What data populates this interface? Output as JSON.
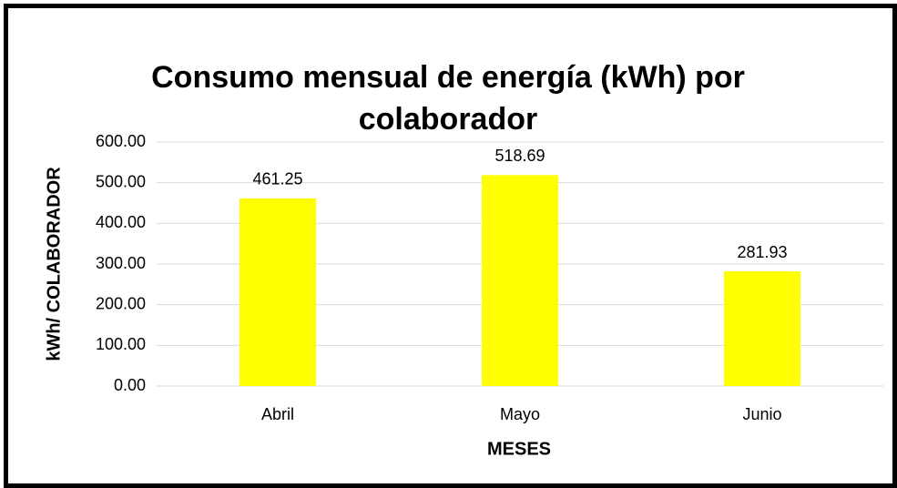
{
  "chart_data": {
    "type": "bar",
    "title": "Consumo mensual de energía (kWh) por colaborador",
    "x_label": "MESES",
    "y_label": "kWh/ COLABORADOR",
    "categories": [
      "Abril",
      "Mayo",
      "Junio"
    ],
    "values": [
      461.25,
      518.69,
      281.93
    ],
    "color": "#ffff00",
    "ylim": [
      0,
      600
    ],
    "yticks": [
      {
        "value": 0,
        "label": "0.00"
      },
      {
        "value": 100,
        "label": "100.00"
      },
      {
        "value": 200,
        "label": "200.00"
      },
      {
        "value": 300,
        "label": "300.00"
      },
      {
        "value": 400,
        "label": "400.00"
      },
      {
        "value": 500,
        "label": "500.00"
      },
      {
        "value": 600,
        "label": "600.00"
      }
    ],
    "grid": true
  }
}
